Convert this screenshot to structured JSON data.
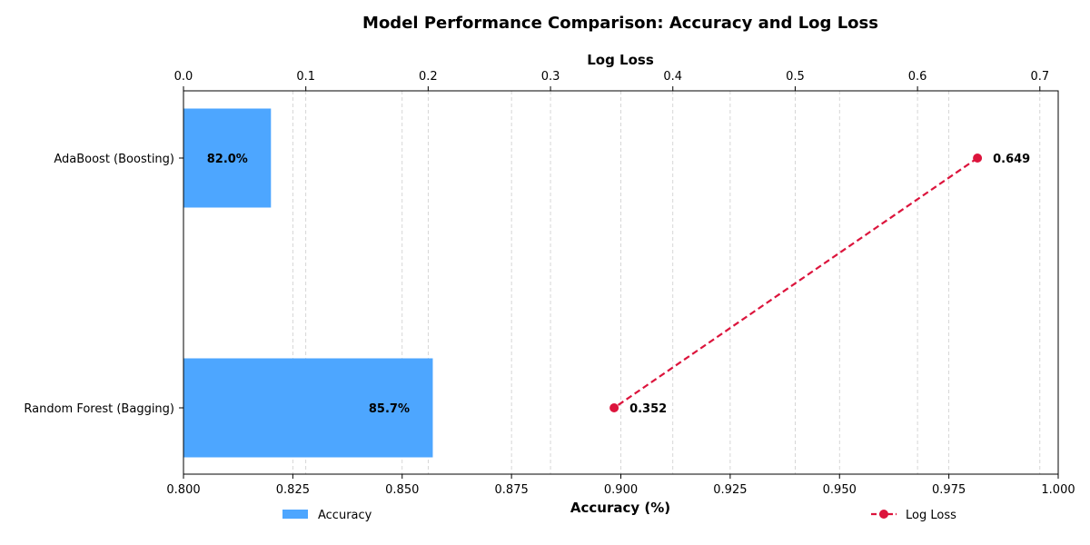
{
  "chart_data": {
    "type": "bar",
    "title": "Model Performance Comparison: Accuracy and Log Loss",
    "categories": [
      "AdaBoost (Boosting)",
      "Random Forest (Bagging)"
    ],
    "series": [
      {
        "name": "Accuracy",
        "axis": "bottom",
        "values": [
          0.82,
          0.857
        ],
        "labels": [
          "82.0%",
          "85.7%"
        ],
        "color": "#4da6ff"
      },
      {
        "name": "Log Loss",
        "axis": "top",
        "type": "line",
        "values": [
          0.649,
          0.352
        ],
        "labels": [
          "0.649",
          "0.352"
        ],
        "color": "#dc143c",
        "line_style": "dashed"
      }
    ],
    "xlabel_bottom": "Accuracy (%)",
    "xlabel_top": "Log Loss",
    "xlim_bottom": [
      0.8,
      1.0
    ],
    "xlim_top": [
      0.0,
      0.715
    ],
    "xticks_bottom": [
      "0.800",
      "0.825",
      "0.850",
      "0.875",
      "0.900",
      "0.925",
      "0.950",
      "0.975",
      "1.000"
    ],
    "xticks_top": [
      "0.0",
      "0.1",
      "0.2",
      "0.3",
      "0.4",
      "0.5",
      "0.6",
      "0.7"
    ],
    "grid": "vertical dashed",
    "legend": [
      "Accuracy (bottom-left)",
      "Log Loss (bottom-right)"
    ]
  }
}
